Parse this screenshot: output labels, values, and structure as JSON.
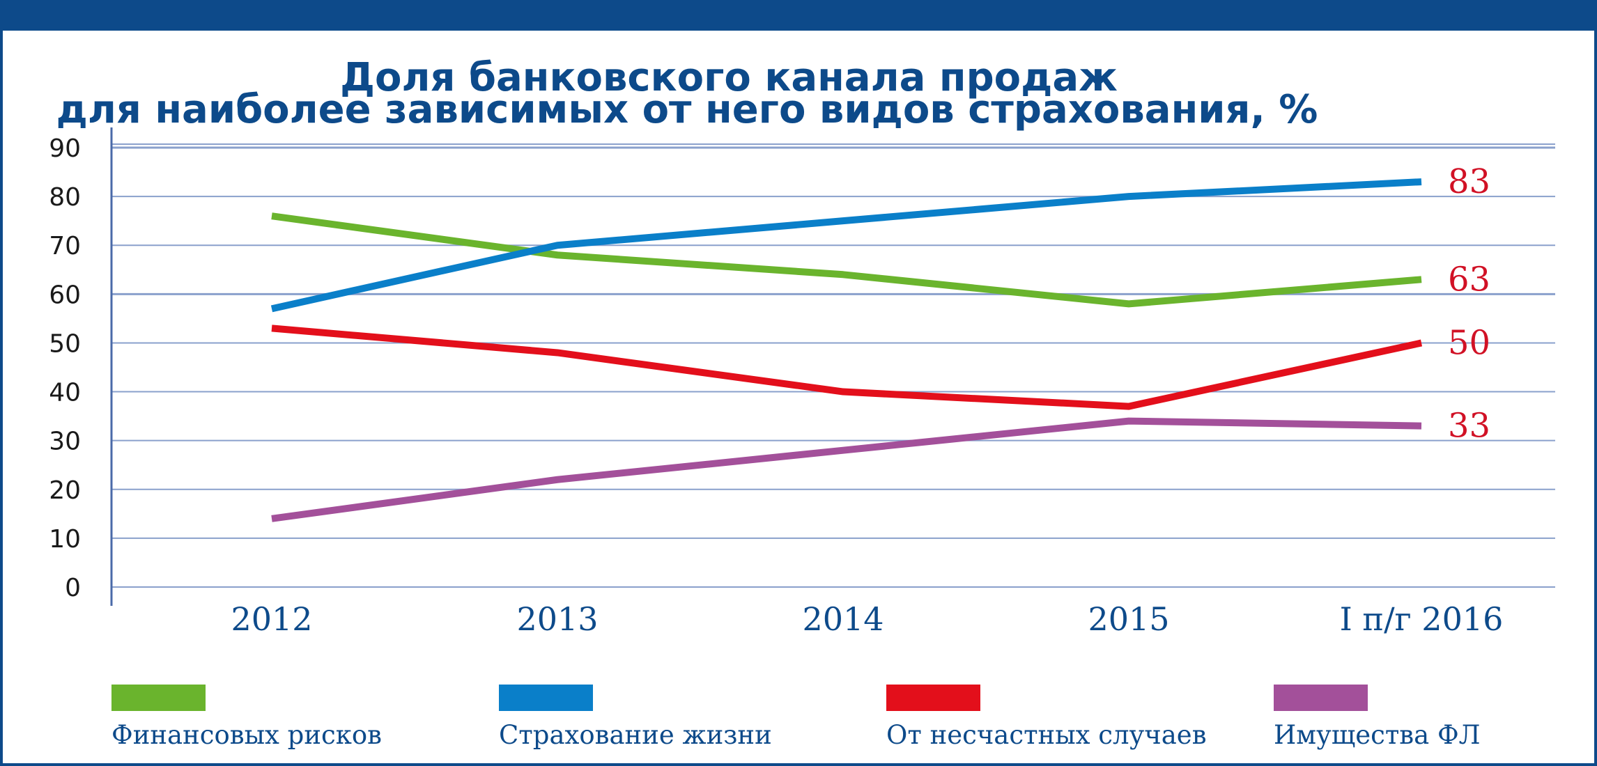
{
  "chart_data": {
    "type": "line",
    "title_lines": [
      "Доля банковского канала продаж",
      "для наиболее зависимых от него видов страхования, %"
    ],
    "categories": [
      "2012",
      "2013",
      "2014",
      "2015",
      "I п/г 2016"
    ],
    "ylim": [
      0,
      90
    ],
    "yticks": [
      "0",
      "10",
      "20",
      "30",
      "40",
      "50",
      "60",
      "70",
      "80",
      "90"
    ],
    "grid": true,
    "legend_position": "bottom",
    "series": [
      {
        "name": "Финансовых рисков",
        "color": "#6ab42d",
        "values": [
          76,
          68,
          64,
          58,
          63
        ],
        "end_label": "63"
      },
      {
        "name": "Страхование жизни",
        "color": "#0a7fc9",
        "values": [
          57,
          70,
          75,
          80,
          83
        ],
        "end_label": "83"
      },
      {
        "name": "От несчастных случаев",
        "color": "#e30f1b",
        "values": [
          53,
          48,
          40,
          37,
          50
        ],
        "end_label": "50"
      },
      {
        "name": "Имущества ФЛ",
        "color": "#a3509a",
        "values": [
          14,
          22,
          28,
          34,
          33
        ],
        "end_label": "33"
      }
    ],
    "end_label_color": "#d11125"
  },
  "colors": {
    "frame": "#0d4a8a",
    "grid": "#8aa0cc",
    "axis": "#4a6aa8"
  }
}
